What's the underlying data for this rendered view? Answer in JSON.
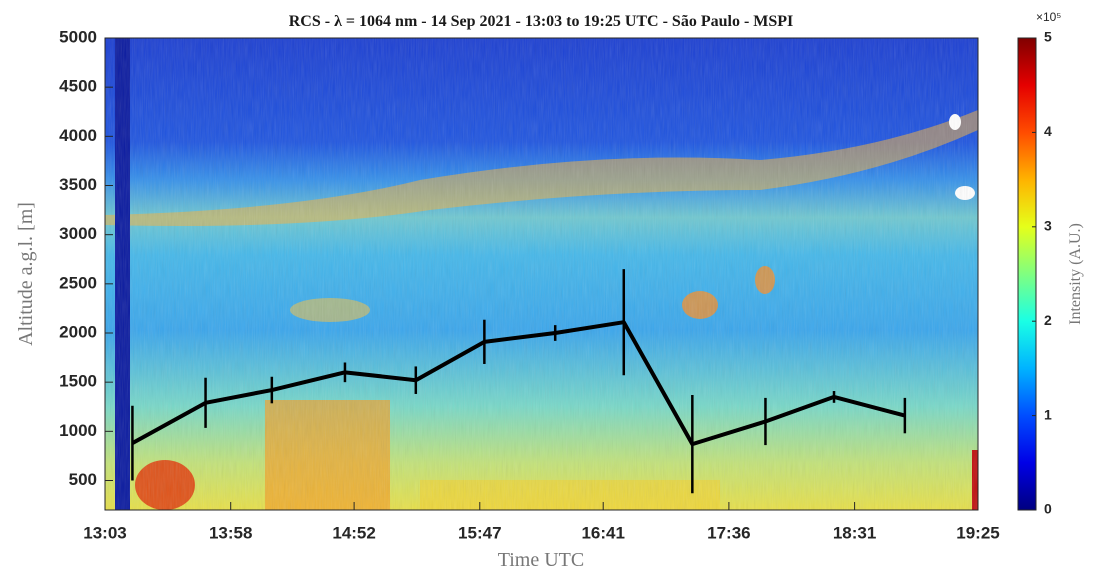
{
  "chart_data": {
    "type": "line",
    "title": "RCS - λ = 1064 nm - 14 Sep 2021 - 13:03 to 19:25 UTC - São Paulo - MSPI",
    "xlabel": "Time UTC",
    "ylabel": "Altitude a.g.l. [m]",
    "x": [
      795,
      827,
      856,
      888,
      919,
      949,
      980,
      1010,
      1040,
      1072,
      1102,
      1133
    ],
    "values": [
      880,
      1290,
      1420,
      1600,
      1520,
      1910,
      2000,
      2110,
      870,
      1100,
      1350,
      1160
    ],
    "errors": [
      380,
      255,
      135,
      100,
      140,
      225,
      80,
      540,
      500,
      240,
      60,
      180
    ],
    "color": "#000000",
    "xlim": [
      783,
      1165
    ],
    "xticks": [
      {
        "value": 783,
        "label": "13:03"
      },
      {
        "value": 838,
        "label": "13:58"
      },
      {
        "value": 892,
        "label": "14:52"
      },
      {
        "value": 947,
        "label": "15:47"
      },
      {
        "value": 1001,
        "label": "16:41"
      },
      {
        "value": 1056,
        "label": "17:36"
      },
      {
        "value": 1111,
        "label": "18:31"
      },
      {
        "value": 1165,
        "label": "19:25"
      }
    ],
    "ylim": [
      200,
      5000
    ],
    "yticks": [
      500,
      1000,
      1500,
      2000,
      2500,
      3000,
      3500,
      4000,
      4500,
      5000
    ],
    "colormap": "jet",
    "clim": [
      0,
      5
    ],
    "cticks": [
      0,
      1,
      2,
      3,
      4,
      5
    ],
    "clabel": "Intensity (A.U.)",
    "cexponent": "×10⁵"
  }
}
